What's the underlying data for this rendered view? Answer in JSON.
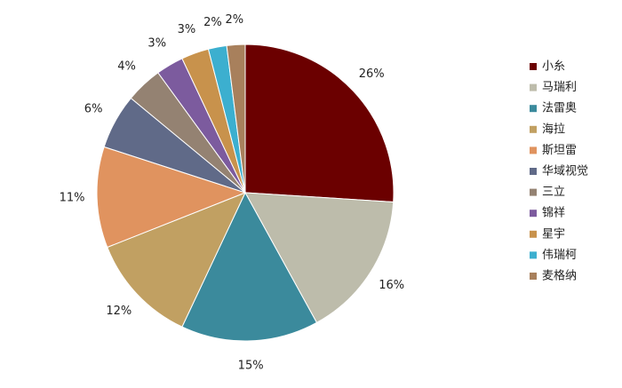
{
  "chart_data": {
    "type": "pie",
    "categories": [
      "小糸",
      "马瑞利",
      "法雷奥",
      "海拉",
      "斯坦雷",
      "华域视觉",
      "三立",
      "锦祥",
      "星宇",
      "伟瑞柯",
      "麦格纳"
    ],
    "values": [
      26,
      16,
      15,
      12,
      11,
      6,
      4,
      3,
      3,
      2,
      2
    ],
    "value_labels": [
      "26%",
      "16%",
      "15%",
      "12%",
      "11%",
      "6%",
      "4%",
      "3%",
      "3%",
      "2%",
      "2%"
    ],
    "colors": [
      "#6b0000",
      "#bdbcab",
      "#3b8a9c",
      "#c1a062",
      "#e0935f",
      "#606a88",
      "#948272",
      "#7c5b9e",
      "#c8924c",
      "#3cafcf",
      "#a8805c"
    ],
    "legend": "right"
  }
}
